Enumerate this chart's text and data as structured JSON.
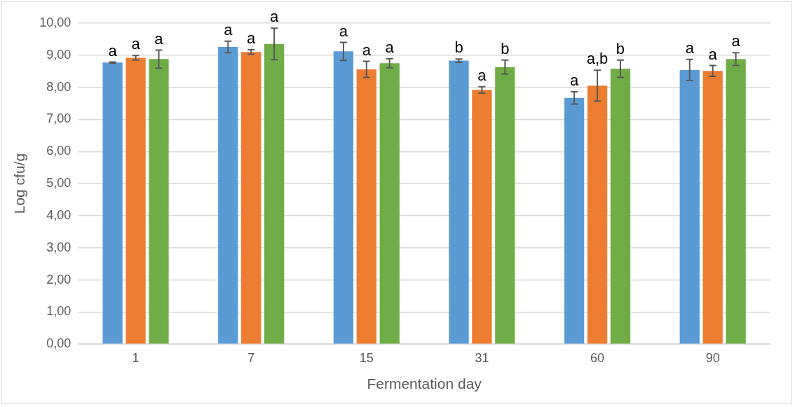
{
  "chart_data": {
    "type": "bar",
    "xlabel": "Fermentation day",
    "ylabel": "Log cfu/g",
    "categories": [
      "1",
      "7",
      "15",
      "31",
      "60",
      "90"
    ],
    "series": [
      {
        "color": "#5b9bd5",
        "values": [
          8.77,
          9.26,
          9.12,
          8.83,
          7.67,
          8.54
        ],
        "errors": [
          0.02,
          0.18,
          0.28,
          0.05,
          0.19,
          0.33
        ],
        "value_labels": [
          "a",
          "a",
          "a",
          "b",
          "a",
          "a"
        ]
      },
      {
        "color": "#ed7d31",
        "values": [
          8.92,
          9.1,
          8.56,
          7.92,
          8.05,
          8.51
        ],
        "errors": [
          0.07,
          0.07,
          0.25,
          0.1,
          0.48,
          0.17
        ],
        "value_labels": [
          "a",
          "a",
          "a",
          "a",
          "a,b",
          "a"
        ]
      },
      {
        "color": "#70ad47",
        "values": [
          8.88,
          9.35,
          8.75,
          8.63,
          8.58,
          8.88
        ],
        "errors": [
          0.28,
          0.49,
          0.14,
          0.22,
          0.27,
          0.2
        ],
        "value_labels": [
          "a",
          "a",
          "a",
          "b",
          "b",
          "a"
        ]
      }
    ],
    "ylim": [
      0,
      10
    ],
    "yticks": [
      {
        "value": 0,
        "label": "0,00"
      },
      {
        "value": 1,
        "label": "1,00"
      },
      {
        "value": 2,
        "label": "2,00"
      },
      {
        "value": 3,
        "label": "3,00"
      },
      {
        "value": 4,
        "label": "4,00"
      },
      {
        "value": 5,
        "label": "5,00"
      },
      {
        "value": 6,
        "label": "6,00"
      },
      {
        "value": 7,
        "label": "7,00"
      },
      {
        "value": 8,
        "label": "8,00"
      },
      {
        "value": 9,
        "label": "9,00"
      },
      {
        "value": 10,
        "label": "10,00"
      }
    ],
    "grid": "y",
    "legend": false
  }
}
